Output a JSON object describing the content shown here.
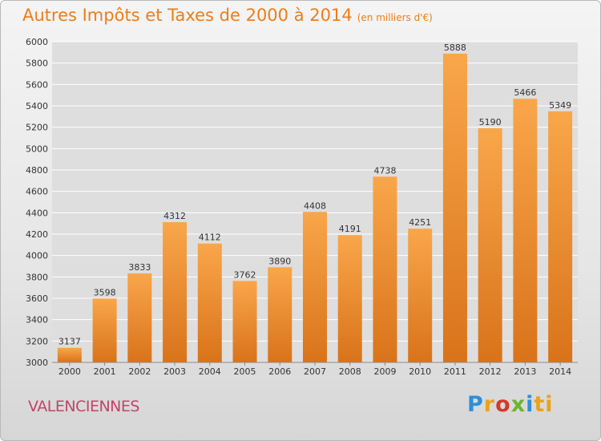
{
  "header": {
    "title": "Autres Impôts et Taxes de 2000 à 2014",
    "subtitle": "(en milliers d'€)"
  },
  "footer": {
    "city": "VALENCIENNES",
    "logo": "Proxiti"
  },
  "colors": {
    "bar_light": "#f9a64a",
    "bar_dark": "#d9731a",
    "title": "#ef7d16",
    "city": "#c0456b",
    "grid": "#ffffff"
  },
  "chart_data": {
    "type": "bar",
    "title": "Autres Impôts et Taxes de 2000 à 2014",
    "subtitle": "(en milliers d'€)",
    "xlabel": "",
    "ylabel": "",
    "categories": [
      "2000",
      "2001",
      "2002",
      "2003",
      "2004",
      "2005",
      "2006",
      "2007",
      "2008",
      "2009",
      "2010",
      "2011",
      "2012",
      "2013",
      "2014"
    ],
    "values": [
      3137,
      3598,
      3833,
      4312,
      4112,
      3762,
      3890,
      4408,
      4191,
      4738,
      4251,
      5888,
      5190,
      5466,
      5349
    ],
    "ylim": [
      3000,
      6000
    ],
    "yticks": [
      3000,
      3200,
      3400,
      3600,
      3800,
      4000,
      4200,
      4400,
      4600,
      4800,
      5000,
      5200,
      5400,
      5600,
      5800,
      6000
    ],
    "grid": true,
    "legend": "none"
  }
}
